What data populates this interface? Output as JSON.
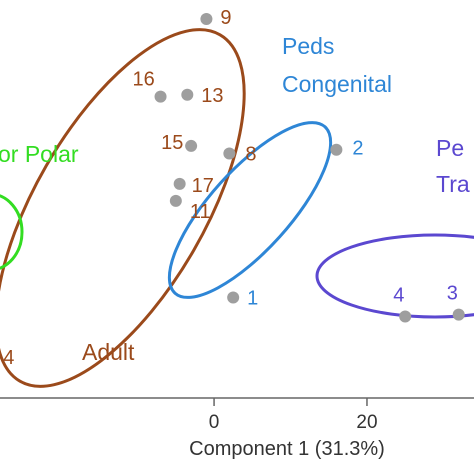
{
  "chart_data": {
    "type": "scatter",
    "title": "",
    "xlabel": "Component 1 (31.3%)",
    "ylabel": "",
    "xlim": [
      -28,
      34
    ],
    "ylim": [
      -9.5,
      11.5
    ],
    "x_ticks": [
      0,
      20
    ],
    "x_tick_labels": [
      "0",
      "20"
    ],
    "grid": false,
    "legend": "none",
    "point_color": "#9e9e9e",
    "points": [
      {
        "label": "9",
        "x": -1,
        "y": 10.5,
        "group": "Adult"
      },
      {
        "label": "16",
        "x": -7,
        "y": 6.4,
        "group": "Adult"
      },
      {
        "label": "13",
        "x": -3.5,
        "y": 6.5,
        "group": "Adult"
      },
      {
        "label": "15",
        "x": -3,
        "y": 3.8,
        "group": "Adult"
      },
      {
        "label": "8",
        "x": 2,
        "y": 3.4,
        "group": "Adult"
      },
      {
        "label": "17",
        "x": -4.5,
        "y": 1.8,
        "group": "Adult"
      },
      {
        "label": "11",
        "x": -5,
        "y": 0.9,
        "group": "Adult"
      },
      {
        "label": "1",
        "x": 2.5,
        "y": -4.2,
        "group": "Peds Congenital"
      },
      {
        "label": "2",
        "x": 16,
        "y": 3.6,
        "group": "Peds Congenital"
      },
      {
        "label": "4",
        "x": 25,
        "y": -5.2,
        "group": "Peds Tra"
      },
      {
        "label": "3",
        "x": 32,
        "y": -5.1,
        "group": "Peds Tra"
      },
      {
        "label": "4",
        "x": -26,
        "y": -8.5,
        "group": "Adult"
      }
    ],
    "groups": [
      {
        "name": "Adult",
        "label_lines": [
          "Adult"
        ],
        "color": "#9b4a1b"
      },
      {
        "name": "Peds Congenital",
        "label_lines": [
          "Peds",
          "Congenital"
        ],
        "color": "#2e86d6"
      },
      {
        "name": "Peds Tra",
        "label_lines": [
          "Pe",
          "Tra"
        ],
        "color": "#5b48d0"
      },
      {
        "name": "or Polar",
        "label_lines": [
          "or Polar"
        ],
        "color": "#33dd22"
      }
    ]
  }
}
